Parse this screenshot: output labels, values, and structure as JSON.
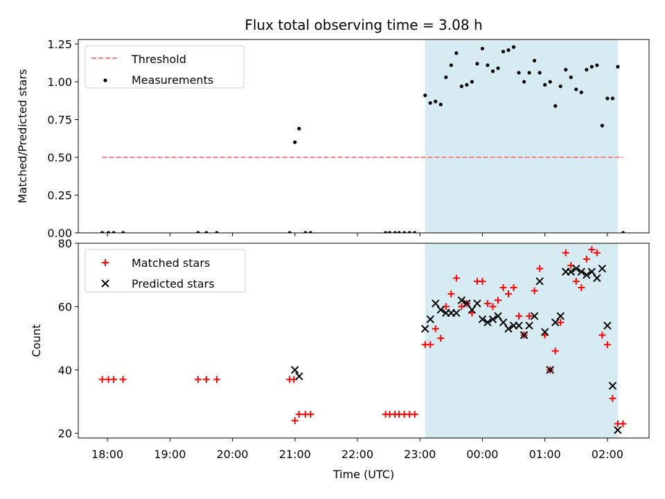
{
  "title": "Flux total observing time = 3.08 h",
  "colors": {
    "threshold": "#ff7f7f",
    "measurement": "#000000",
    "matched": "#ff0000",
    "predicted": "#000000",
    "observing_window": "#add8e6"
  },
  "chart_data": [
    {
      "type": "scatter",
      "ylabel": "Matched/Predicted stars",
      "xlabel": "",
      "xlim": [
        "17:32",
        "02:40"
      ],
      "ylim": [
        0,
        1.28
      ],
      "yticks": [
        0.0,
        0.25,
        0.5,
        0.75,
        1.0,
        1.25
      ],
      "ytick_labels": [
        "0.00",
        "0.25",
        "0.50",
        "0.75",
        "1.00",
        "1.25"
      ],
      "legend_position": "top-left",
      "shaded_span": {
        "x": [
          "23:05",
          "02:10"
        ]
      },
      "series": [
        {
          "name": "Threshold",
          "style": "dashed-line",
          "x": [
            "17:55",
            "02:15"
          ],
          "y": [
            0.5,
            0.5
          ]
        },
        {
          "name": "Measurements",
          "style": "dot",
          "points": [
            [
              "17:55",
              0.0
            ],
            [
              "18:01",
              0.0
            ],
            [
              "18:06",
              0.0
            ],
            [
              "18:15",
              0.0
            ],
            [
              "19:27",
              0.0
            ],
            [
              "19:35",
              0.0
            ],
            [
              "19:45",
              0.0
            ],
            [
              "20:55",
              0.0
            ],
            [
              "21:00",
              0.6
            ],
            [
              "21:04",
              0.69
            ],
            [
              "21:10",
              0.0
            ],
            [
              "21:15",
              0.0
            ],
            [
              "22:27",
              0.0
            ],
            [
              "22:31",
              0.0
            ],
            [
              "22:36",
              0.0
            ],
            [
              "22:40",
              0.0
            ],
            [
              "22:45",
              0.0
            ],
            [
              "22:50",
              0.0
            ],
            [
              "22:55",
              0.0
            ],
            [
              "23:05",
              0.91
            ],
            [
              "23:10",
              0.86
            ],
            [
              "23:15",
              0.87
            ],
            [
              "23:20",
              0.85
            ],
            [
              "23:25",
              1.03
            ],
            [
              "23:30",
              1.11
            ],
            [
              "23:35",
              1.19
            ],
            [
              "23:40",
              0.97
            ],
            [
              "23:45",
              0.98
            ],
            [
              "23:50",
              1.0
            ],
            [
              "23:55",
              1.12
            ],
            [
              "00:00",
              1.22
            ],
            [
              "00:05",
              1.11
            ],
            [
              "00:10",
              1.07
            ],
            [
              "00:15",
              1.09
            ],
            [
              "00:20",
              1.2
            ],
            [
              "00:25",
              1.21
            ],
            [
              "00:30",
              1.23
            ],
            [
              "00:35",
              1.06
            ],
            [
              "00:40",
              1.0
            ],
            [
              "00:45",
              1.06
            ],
            [
              "00:50",
              1.14
            ],
            [
              "00:55",
              1.06
            ],
            [
              "01:00",
              0.98
            ],
            [
              "01:05",
              1.0
            ],
            [
              "01:10",
              0.84
            ],
            [
              "01:15",
              0.97
            ],
            [
              "01:20",
              1.08
            ],
            [
              "01:25",
              1.03
            ],
            [
              "01:30",
              0.95
            ],
            [
              "01:35",
              0.93
            ],
            [
              "01:40",
              1.08
            ],
            [
              "01:45",
              1.1
            ],
            [
              "01:50",
              1.11
            ],
            [
              "01:55",
              0.71
            ],
            [
              "02:00",
              0.89
            ],
            [
              "02:05",
              0.89
            ],
            [
              "02:10",
              1.1
            ],
            [
              "02:15",
              0.0
            ]
          ]
        }
      ]
    },
    {
      "type": "scatter",
      "ylabel": "Count",
      "xlabel": "Time (UTC)",
      "xlim": [
        "17:32",
        "02:40"
      ],
      "ylim": [
        18.5,
        80
      ],
      "yticks": [
        20,
        40,
        60,
        80
      ],
      "ytick_labels": [
        "20",
        "40",
        "60",
        "80"
      ],
      "xticks": [
        "18:00",
        "19:00",
        "20:00",
        "21:00",
        "22:00",
        "23:00",
        "00:00",
        "01:00",
        "02:00"
      ],
      "xtick_labels": [
        "18:00",
        "19:00",
        "20:00",
        "21:00",
        "22:00",
        "23:00",
        "00:00",
        "01:00",
        "02:00"
      ],
      "legend_position": "top-left",
      "shaded_span": {
        "x": [
          "23:05",
          "02:10"
        ]
      },
      "series": [
        {
          "name": "Matched stars",
          "marker": "plus",
          "points": [
            [
              "17:55",
              37
            ],
            [
              "18:01",
              37
            ],
            [
              "18:06",
              37
            ],
            [
              "18:15",
              37
            ],
            [
              "19:27",
              37
            ],
            [
              "19:35",
              37
            ],
            [
              "19:45",
              37
            ],
            [
              "20:55",
              37
            ],
            [
              "20:59",
              37
            ],
            [
              "21:00",
              24
            ],
            [
              "21:04",
              26
            ],
            [
              "21:10",
              26
            ],
            [
              "21:15",
              26
            ],
            [
              "22:27",
              26
            ],
            [
              "22:31",
              26
            ],
            [
              "22:36",
              26
            ],
            [
              "22:40",
              26
            ],
            [
              "22:45",
              26
            ],
            [
              "22:50",
              26
            ],
            [
              "22:55",
              26
            ],
            [
              "23:05",
              48
            ],
            [
              "23:10",
              48
            ],
            [
              "23:15",
              53
            ],
            [
              "23:20",
              50
            ],
            [
              "23:25",
              60
            ],
            [
              "23:30",
              64
            ],
            [
              "23:35",
              69
            ],
            [
              "23:40",
              60
            ],
            [
              "23:45",
              61
            ],
            [
              "23:50",
              58
            ],
            [
              "23:55",
              68
            ],
            [
              "00:00",
              68
            ],
            [
              "00:05",
              61
            ],
            [
              "00:10",
              60
            ],
            [
              "00:15",
              62
            ],
            [
              "00:20",
              66
            ],
            [
              "00:25",
              64
            ],
            [
              "00:30",
              66
            ],
            [
              "00:35",
              57
            ],
            [
              "00:40",
              51
            ],
            [
              "00:45",
              57
            ],
            [
              "00:50",
              65
            ],
            [
              "00:55",
              72
            ],
            [
              "01:00",
              51
            ],
            [
              "01:05",
              40
            ],
            [
              "01:10",
              46
            ],
            [
              "01:15",
              55
            ],
            [
              "01:20",
              77
            ],
            [
              "01:25",
              73
            ],
            [
              "01:30",
              68
            ],
            [
              "01:35",
              66
            ],
            [
              "01:40",
              75
            ],
            [
              "01:45",
              78
            ],
            [
              "01:50",
              77
            ],
            [
              "01:55",
              51
            ],
            [
              "02:00",
              48
            ],
            [
              "02:05",
              31
            ],
            [
              "02:10",
              23
            ],
            [
              "02:15",
              23
            ]
          ]
        },
        {
          "name": "Predicted stars",
          "marker": "x",
          "points": [
            [
              "21:00",
              40
            ],
            [
              "21:04",
              38
            ],
            [
              "23:05",
              53
            ],
            [
              "23:10",
              56
            ],
            [
              "23:15",
              61
            ],
            [
              "23:20",
              59
            ],
            [
              "23:25",
              58
            ],
            [
              "23:30",
              58
            ],
            [
              "23:35",
              58
            ],
            [
              "23:40",
              62
            ],
            [
              "23:45",
              61
            ],
            [
              "23:50",
              59
            ],
            [
              "23:55",
              61
            ],
            [
              "00:00",
              56
            ],
            [
              "00:05",
              55
            ],
            [
              "00:10",
              56
            ],
            [
              "00:15",
              57
            ],
            [
              "00:20",
              55
            ],
            [
              "00:25",
              53
            ],
            [
              "00:30",
              54
            ],
            [
              "00:35",
              54
            ],
            [
              "00:40",
              51
            ],
            [
              "00:45",
              54
            ],
            [
              "00:50",
              57
            ],
            [
              "00:55",
              68
            ],
            [
              "01:00",
              52
            ],
            [
              "01:05",
              40
            ],
            [
              "01:10",
              55
            ],
            [
              "01:15",
              57
            ],
            [
              "01:20",
              71
            ],
            [
              "01:25",
              71
            ],
            [
              "01:30",
              72
            ],
            [
              "01:35",
              71
            ],
            [
              "01:40",
              70
            ],
            [
              "01:45",
              71
            ],
            [
              "01:50",
              69
            ],
            [
              "01:55",
              72
            ],
            [
              "02:00",
              54
            ],
            [
              "02:05",
              35
            ],
            [
              "02:10",
              21
            ]
          ]
        }
      ]
    }
  ]
}
